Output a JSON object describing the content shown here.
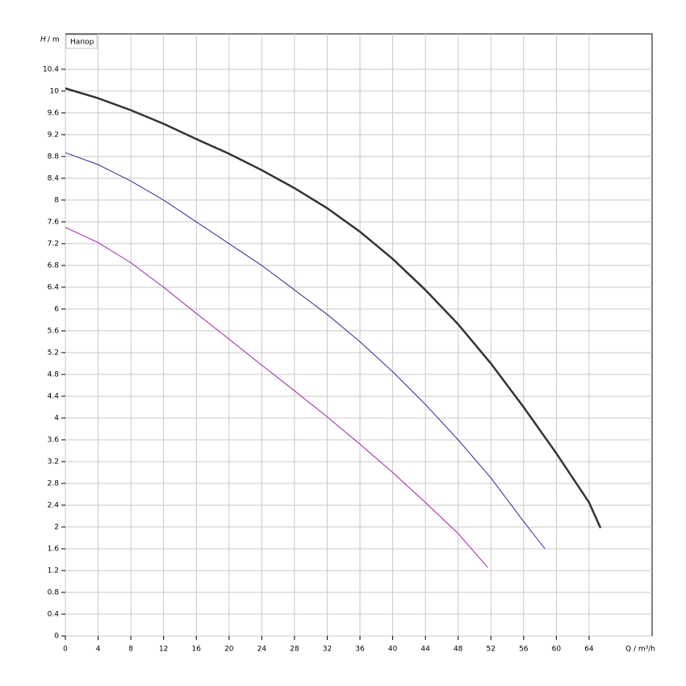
{
  "chart_data": {
    "type": "line",
    "annotation": "Напор",
    "y_label_symbol": "H",
    "y_label_unit": "/ m",
    "x_label": "Q / m³/h",
    "xlim": [
      0,
      71.7
    ],
    "ylim": [
      0,
      11.05
    ],
    "xticks": [
      0,
      4,
      8,
      12,
      16,
      20,
      24,
      28,
      32,
      36,
      40,
      44,
      48,
      52,
      56,
      60,
      64
    ],
    "yticks": [
      0,
      0.4,
      0.8,
      1.2,
      1.6,
      2,
      2.4,
      2.8,
      3.2,
      3.6,
      4,
      4.4,
      4.8,
      5.2,
      5.6,
      6,
      6.4,
      6.8,
      7.2,
      7.6,
      8,
      8.4,
      8.8,
      9.2,
      9.6,
      10,
      10.4
    ],
    "grid": true,
    "series": [
      {
        "color": "#333333",
        "width": 2.5,
        "x": [
          0,
          4,
          8,
          12,
          16,
          20,
          24,
          28,
          32,
          36,
          40,
          44,
          48,
          52,
          56,
          60,
          64,
          65.4
        ],
        "values": [
          10.05,
          9.87,
          9.65,
          9.4,
          9.12,
          8.85,
          8.55,
          8.22,
          7.85,
          7.42,
          6.92,
          6.35,
          5.72,
          5.0,
          4.2,
          3.35,
          2.45,
          1.98
        ]
      },
      {
        "color": "#2b2b9c",
        "width": 1,
        "x": [
          0,
          4,
          8,
          12,
          16,
          20,
          24,
          28,
          32,
          36,
          40,
          44,
          48,
          52,
          56,
          58.6
        ],
        "values": [
          8.87,
          8.65,
          8.35,
          8.0,
          7.6,
          7.2,
          6.8,
          6.35,
          5.9,
          5.4,
          4.85,
          4.25,
          3.6,
          2.9,
          2.1,
          1.6
        ]
      },
      {
        "color": "#a020a0",
        "width": 1,
        "x": [
          0,
          4,
          8,
          12,
          16,
          20,
          24,
          28,
          32,
          36,
          40,
          44,
          48,
          51.6
        ],
        "values": [
          7.5,
          7.22,
          6.85,
          6.4,
          5.92,
          5.45,
          4.97,
          4.5,
          4.02,
          3.52,
          3.0,
          2.45,
          1.88,
          1.26
        ]
      }
    ]
  }
}
